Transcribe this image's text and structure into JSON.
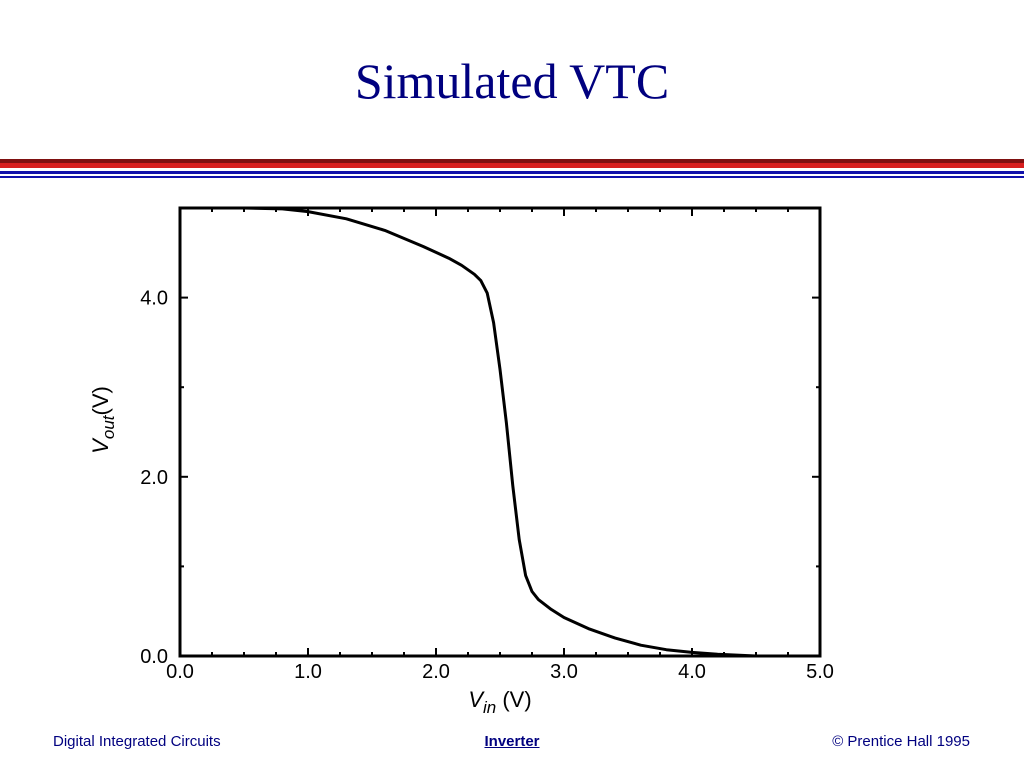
{
  "slide": {
    "title": "Simulated VTC",
    "footer_left": "Digital Integrated Circuits",
    "footer_center": "Inverter",
    "footer_right": "© Prentice Hall 1995"
  },
  "colors": {
    "title": "#00007f",
    "rule_dark_red": "#7f1010",
    "rule_red": "#d81e1e",
    "rule_blue": "#1111aa",
    "curve": "#000000"
  },
  "chart_data": {
    "type": "line",
    "xlabel": {
      "symbol": "V",
      "subscript": "in",
      "unit": " (V)"
    },
    "ylabel": {
      "symbol": "V",
      "subscript": "out",
      "unit": "(V)"
    },
    "xlim": [
      0,
      5
    ],
    "ylim": [
      0,
      5
    ],
    "xticks": [
      0,
      1,
      2,
      3,
      4,
      5
    ],
    "xtick_labels": [
      "0.0",
      "1.0",
      "2.0",
      "3.0",
      "4.0",
      "5.0"
    ],
    "yticks": [
      0,
      2,
      4
    ],
    "ytick_labels": [
      "0.0",
      "2.0",
      "4.0"
    ],
    "grid": false,
    "series": [
      {
        "x": [
          0.0,
          0.2,
          0.5,
          0.8,
          1.0,
          1.3,
          1.6,
          1.9,
          2.1,
          2.2,
          2.3,
          2.35,
          2.4,
          2.45,
          2.5,
          2.55,
          2.6,
          2.65,
          2.7,
          2.75,
          2.8,
          2.9,
          3.0,
          3.2,
          3.4,
          3.6,
          3.8,
          4.0,
          4.2,
          4.5,
          4.8,
          5.0
        ],
        "y": [
          5.0,
          5.0,
          5.0,
          4.99,
          4.96,
          4.88,
          4.75,
          4.57,
          4.44,
          4.36,
          4.26,
          4.19,
          4.05,
          3.72,
          3.2,
          2.6,
          1.9,
          1.3,
          0.9,
          0.72,
          0.63,
          0.52,
          0.43,
          0.3,
          0.2,
          0.12,
          0.07,
          0.04,
          0.02,
          0.0,
          0.0,
          0.0
        ]
      }
    ]
  }
}
